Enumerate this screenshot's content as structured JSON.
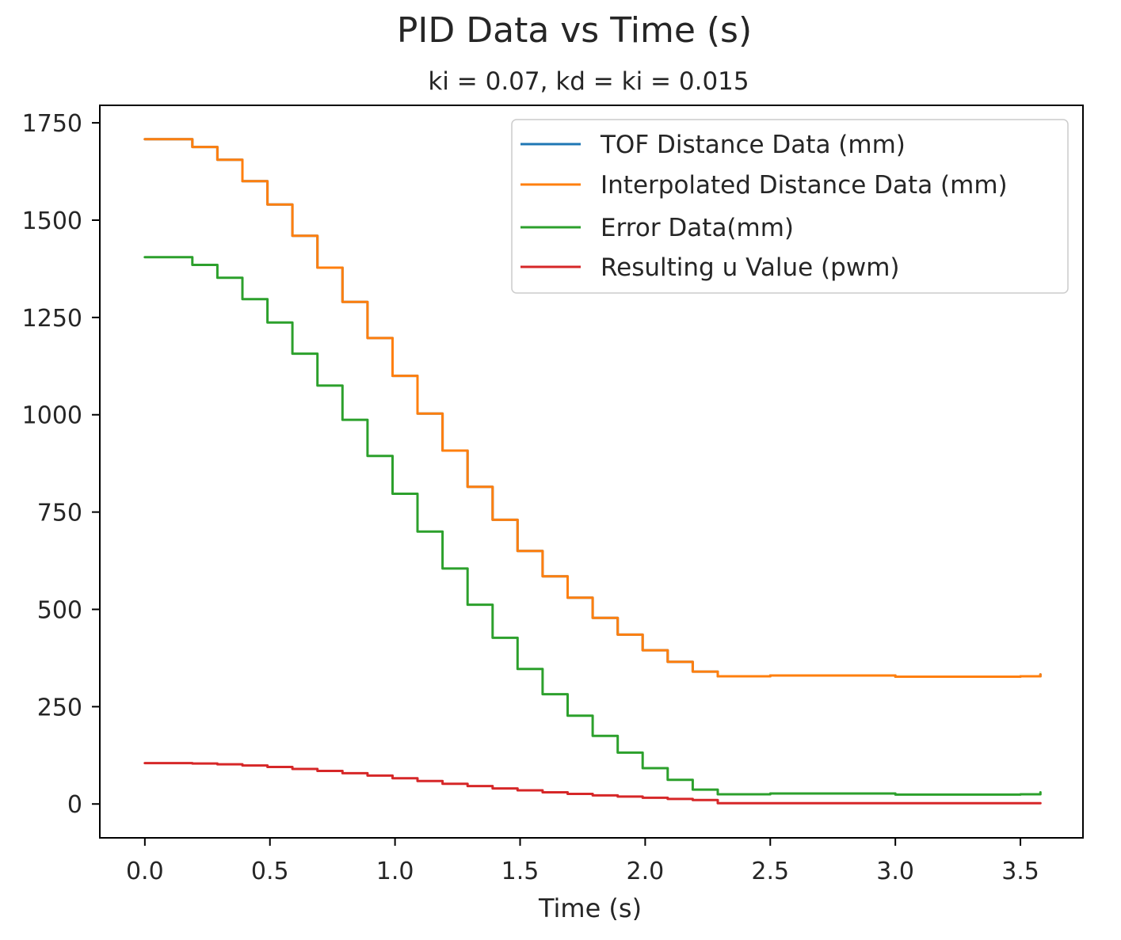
{
  "chart_data": {
    "type": "line",
    "title": "PID Data vs Time (s)",
    "subtitle": "ki = 0.07, kd = ki = 0.015",
    "xlabel": "Time (s)",
    "ylabel": "",
    "xlim": [
      -0.18,
      3.75
    ],
    "ylim": [
      -87,
      1795
    ],
    "xticks": [
      0.0,
      0.5,
      1.0,
      1.5,
      2.0,
      2.5,
      3.0,
      3.5
    ],
    "xtick_labels": [
      "0.0",
      "0.5",
      "1.0",
      "1.5",
      "2.0",
      "2.5",
      "3.0",
      "3.5"
    ],
    "yticks": [
      0,
      250,
      500,
      750,
      1000,
      1250,
      1500,
      1750
    ],
    "ytick_labels": [
      "0",
      "250",
      "500",
      "750",
      "1000",
      "1250",
      "1500",
      "1750"
    ],
    "grid": false,
    "legend_position": "top-right",
    "step_times": [
      0.0,
      0.19,
      0.29,
      0.39,
      0.49,
      0.59,
      0.69,
      0.79,
      0.89,
      0.99,
      1.09,
      1.19,
      1.29,
      1.39,
      1.49,
      1.59,
      1.69,
      1.79,
      1.89,
      1.99,
      2.09,
      2.19,
      2.29,
      2.5,
      3.0,
      3.5,
      3.58
    ],
    "series": [
      {
        "name": "TOF Distance Data (mm)",
        "color": "#1f77b4",
        "values": [
          1708,
          1688,
          1655,
          1600,
          1540,
          1460,
          1378,
          1290,
          1197,
          1100,
          1003,
          908,
          815,
          730,
          650,
          585,
          530,
          478,
          435,
          395,
          365,
          340,
          328,
          330,
          327,
          328,
          333
        ]
      },
      {
        "name": "Interpolated Distance Data (mm)",
        "color": "#ff7f0e",
        "values": [
          1708,
          1688,
          1655,
          1600,
          1540,
          1460,
          1378,
          1290,
          1197,
          1100,
          1003,
          908,
          815,
          730,
          650,
          585,
          530,
          478,
          435,
          395,
          365,
          340,
          328,
          330,
          327,
          328,
          333
        ]
      },
      {
        "name": "Error Data(mm)",
        "color": "#2ca02c",
        "values": [
          1405,
          1385,
          1352,
          1297,
          1237,
          1157,
          1075,
          987,
          894,
          797,
          700,
          605,
          512,
          427,
          347,
          282,
          227,
          175,
          132,
          92,
          62,
          37,
          25,
          27,
          24,
          25,
          30
        ]
      },
      {
        "name": "Resulting u Value (pwm)",
        "color": "#d62728",
        "values": [
          105,
          104,
          102,
          99,
          95,
          90,
          85,
          79,
          73,
          66,
          59,
          52,
          46,
          40,
          35,
          30,
          26,
          22,
          19,
          16,
          13,
          10,
          2,
          2,
          2,
          2,
          2
        ]
      }
    ]
  }
}
